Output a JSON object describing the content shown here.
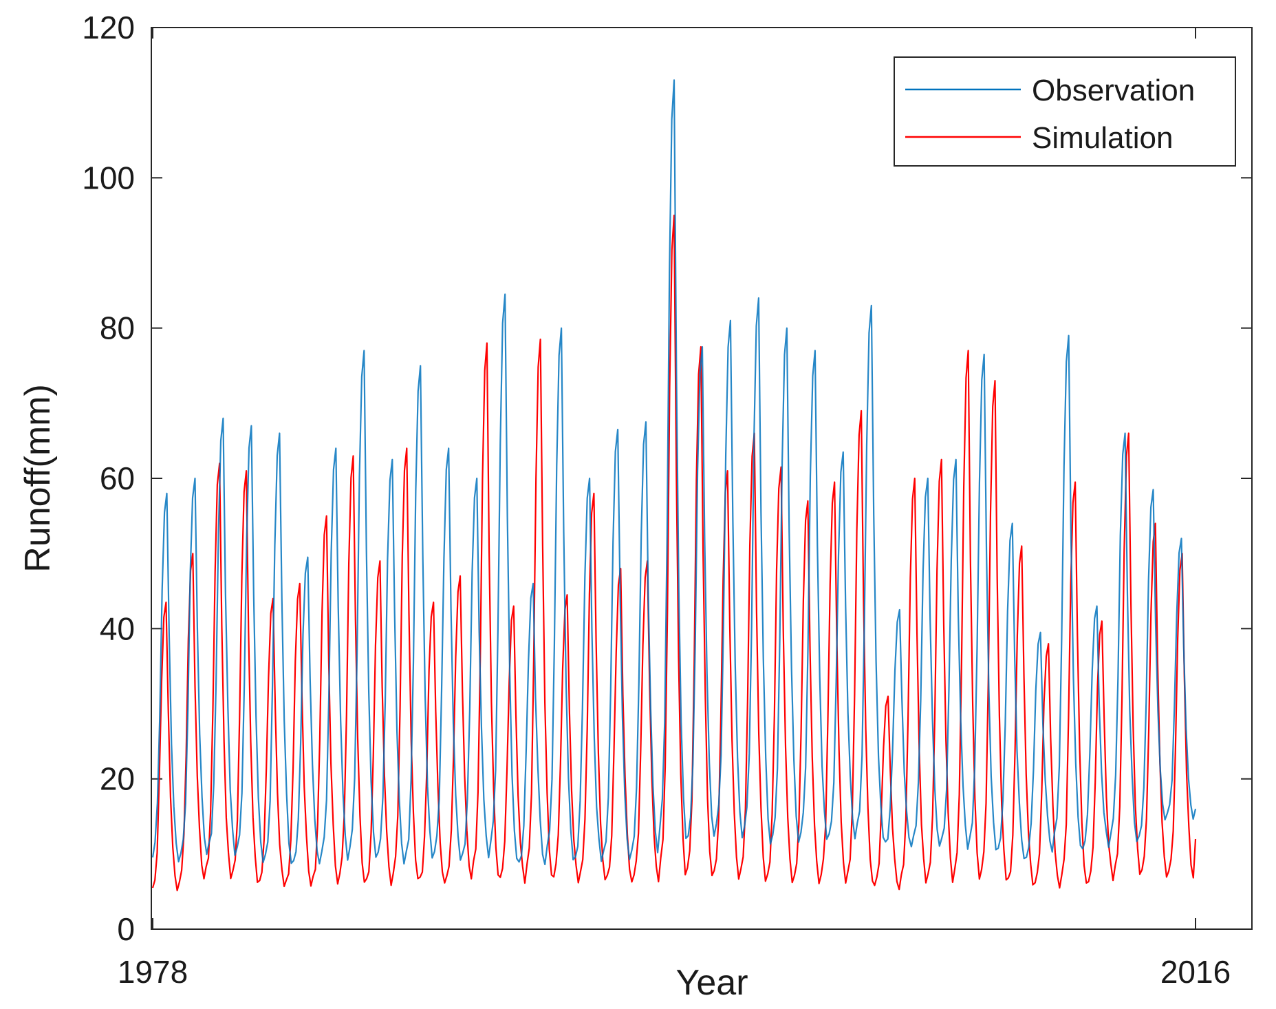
{
  "chart_data": {
    "type": "line",
    "title": "",
    "xlabel": "Year",
    "ylabel": "Runoff(mm)",
    "xlim": [
      1978,
      2016
    ],
    "ylim": [
      0,
      120
    ],
    "x_ticks": [
      "1978",
      "2016"
    ],
    "y_ticks": [
      0,
      20,
      40,
      60,
      80,
      100,
      120
    ],
    "grid": false,
    "legend_position": "top-right",
    "series": [
      {
        "name": "Observation",
        "color": "#0072BD",
        "annual_peaks": [
          58,
          60,
          68,
          67,
          66,
          49.5,
          64,
          77,
          62.5,
          75,
          64,
          60,
          84.5,
          46,
          80,
          60,
          66.5,
          67.5,
          113,
          77.5,
          81,
          84,
          80,
          77,
          63.5,
          83,
          42.5,
          60,
          62.5,
          76.5,
          54,
          39.5,
          79,
          43,
          66,
          58.5,
          52
        ],
        "annual_lows": [
          7,
          7.5,
          8.5,
          8,
          7,
          7,
          7.5,
          7.5,
          7.5,
          7,
          7.5,
          7.5,
          8,
          7,
          7.5,
          7,
          7.5,
          7.5,
          8.5,
          9,
          10.5,
          10,
          9,
          9.5,
          10,
          10.5,
          10,
          10,
          9.5,
          9,
          8.5,
          8,
          9.5,
          9,
          10,
          10,
          13.5
        ],
        "end_value": 16
      },
      {
        "name": "Simulation",
        "color": "#FF0000",
        "annual_peaks": [
          43.5,
          50,
          62,
          61,
          44,
          46,
          55,
          63,
          49,
          64,
          43.5,
          47,
          78,
          43,
          78.5,
          44.5,
          58,
          48,
          49,
          95,
          77.5,
          61,
          66,
          61.5,
          57,
          59.5,
          69,
          31,
          60,
          62.5,
          77,
          73,
          51,
          38,
          59.5,
          41,
          66,
          54,
          50
        ],
        "annual_lows": [
          3.5,
          4,
          5.5,
          5,
          4.5,
          4.5,
          4.5,
          4.5,
          4.5,
          4.5,
          5,
          5,
          5.5,
          5,
          5,
          5,
          5,
          5,
          5,
          5,
          4.5,
          5,
          5,
          4.5,
          4.5,
          4.5,
          4.5,
          4.5,
          4.5,
          4.5,
          4.5,
          4.5,
          4.5,
          4.5,
          4.5,
          4.5,
          5.5
        ],
        "end_value": 12
      }
    ]
  }
}
